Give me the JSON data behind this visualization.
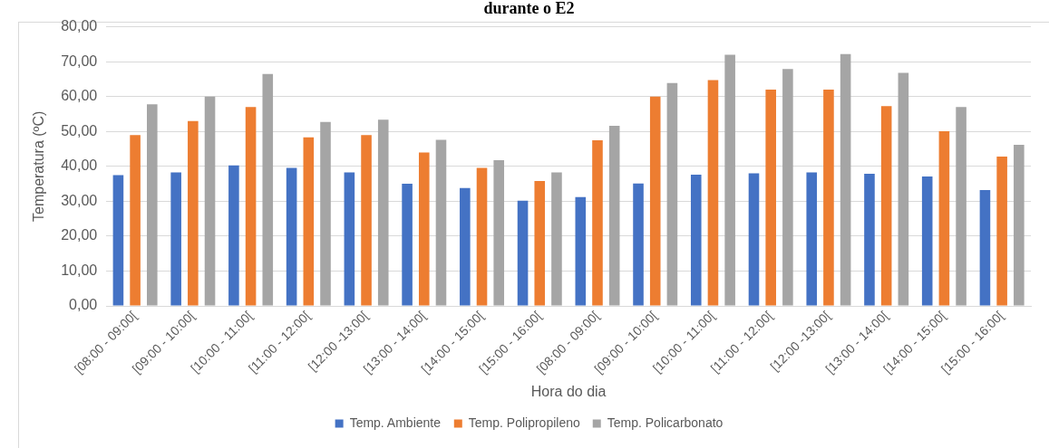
{
  "chart_data": {
    "type": "bar",
    "title": "durante o E2",
    "xlabel": "Hora do dia",
    "ylabel": "Temperatura (ºC)",
    "categories": [
      "[08:00 - 09:00[",
      "[09:00 - 10:00[",
      "[10:00 - 11:00[",
      "[11:00 - 12:00[",
      "[12:00 -13:00[",
      "[13:00 - 14:00[",
      "[14:00 - 15:00[",
      "[15:00 - 16:00[",
      "[08:00 - 09:00[",
      "[09:00 - 10:00[",
      "[10:00 - 11:00[",
      "[11:00 - 12:00[",
      "[12:00 -13:00[",
      "[13:00 - 14:00[",
      "[14:00 - 15:00[",
      "[15:00 - 16:00["
    ],
    "series": [
      {
        "name": "Temp. Ambiente",
        "color": "#4472c4",
        "values": [
          37.5,
          38.3,
          40.3,
          39.6,
          38.3,
          35,
          33.8,
          30.2,
          31.2,
          35.1,
          37.6,
          38,
          38.3,
          37.9,
          37.1,
          33.2
        ]
      },
      {
        "name": "Temp. Polipropileno",
        "color": "#ed7d31",
        "values": [
          49,
          53,
          57,
          48.3,
          49,
          44,
          39.6,
          35.8,
          47.5,
          60,
          64.7,
          62,
          62,
          57.3,
          50.1,
          42.8
        ]
      },
      {
        "name": "Temp. Policarbonato",
        "color": "#a5a5a5",
        "values": [
          57.8,
          60,
          66.5,
          52.7,
          53.4,
          47.6,
          41.8,
          38.3,
          51.6,
          63.9,
          72,
          67.9,
          72.2,
          66.8,
          57,
          46.2
        ]
      }
    ],
    "ylim": [
      0,
      80
    ],
    "yticks": [
      {
        "value": 0,
        "label": "0,00"
      },
      {
        "value": 10,
        "label": "10,00"
      },
      {
        "value": 20,
        "label": "20,00"
      },
      {
        "value": 30,
        "label": "30,00"
      },
      {
        "value": 40,
        "label": "40,00"
      },
      {
        "value": 50,
        "label": "50,00"
      },
      {
        "value": 60,
        "label": "60,00"
      },
      {
        "value": 70,
        "label": "70,00"
      },
      {
        "value": 80,
        "label": "80,00"
      }
    ],
    "grid": "y",
    "legend": "bottom"
  }
}
